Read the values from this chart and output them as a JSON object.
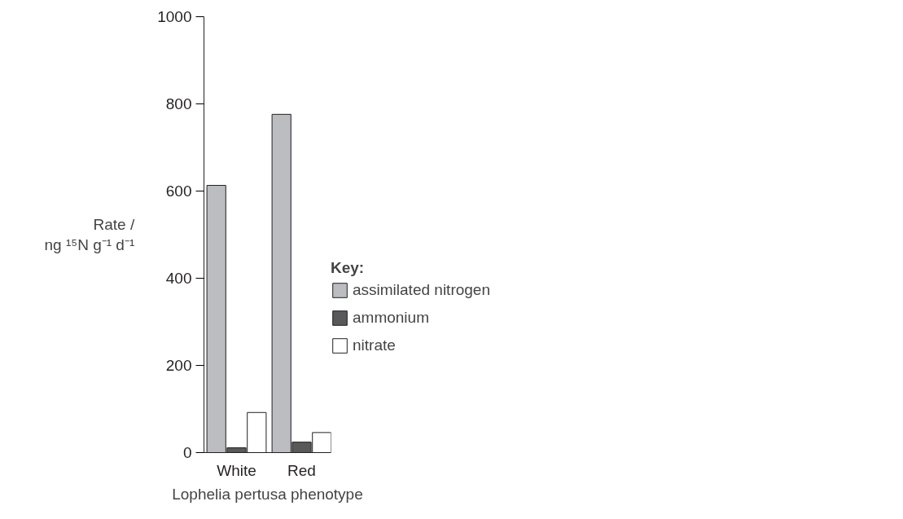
{
  "chart_data": {
    "type": "bar",
    "categories": [
      "White",
      "Red"
    ],
    "series": [
      {
        "name": "assimilated nitrogen",
        "color": "#bcbdc1",
        "values": [
          613,
          776
        ]
      },
      {
        "name": "ammonium",
        "color": "#58595b",
        "values": [
          11,
          24
        ]
      },
      {
        "name": "nitrate",
        "color": "#ffffff",
        "values": [
          92,
          46
        ]
      }
    ],
    "xlabel": "Lophelia pertusa phenotype",
    "ylabel": "Rate /\nng ¹⁵N g⁻¹ d⁻¹",
    "legend_title": "Key:",
    "legend": "right",
    "ylim": [
      0,
      1000
    ],
    "yticks": [
      0,
      200,
      400,
      600,
      800,
      1000
    ],
    "grid": false
  }
}
